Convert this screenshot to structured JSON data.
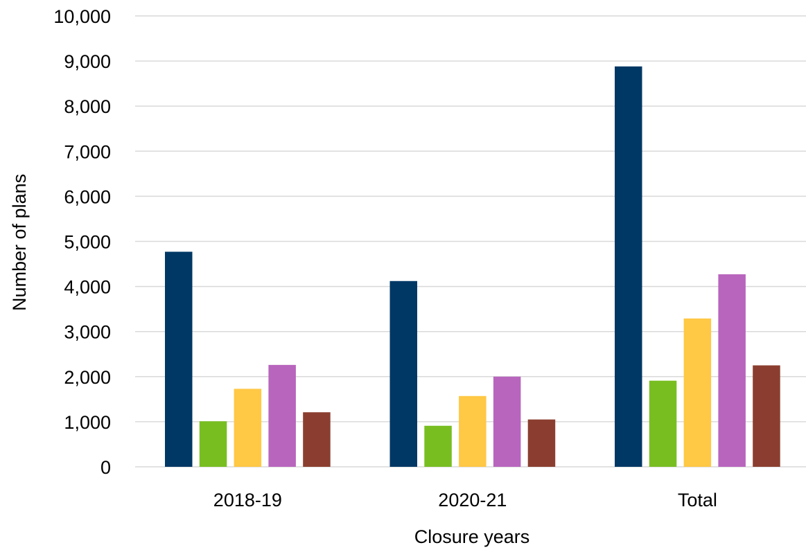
{
  "chart_data": {
    "type": "bar",
    "title": "",
    "xlabel": "Closure years",
    "ylabel": "Number of plans",
    "categories": [
      "2018-19",
      "2020-21",
      "Total"
    ],
    "ylim": [
      0,
      10000
    ],
    "yticks": [
      0,
      1000,
      2000,
      3000,
      4000,
      5000,
      6000,
      7000,
      8000,
      9000,
      10000
    ],
    "ytick_labels": [
      "0",
      "1,000",
      "2,000",
      "3,000",
      "4,000",
      "5,000",
      "6,000",
      "7,000",
      "8,000",
      "9,000",
      "10,000"
    ],
    "grid": true,
    "legend": "none",
    "series": [
      {
        "color": "#003865",
        "values": [
          4770,
          4120,
          8880
        ]
      },
      {
        "color": "#78be21",
        "values": [
          1010,
          910,
          1910
        ]
      },
      {
        "color": "#ffc845",
        "values": [
          1730,
          1570,
          3290
        ]
      },
      {
        "color": "#b865bd",
        "values": [
          2260,
          2000,
          4270
        ]
      },
      {
        "color": "#8b3e2f",
        "values": [
          1210,
          1050,
          2250
        ]
      }
    ]
  }
}
